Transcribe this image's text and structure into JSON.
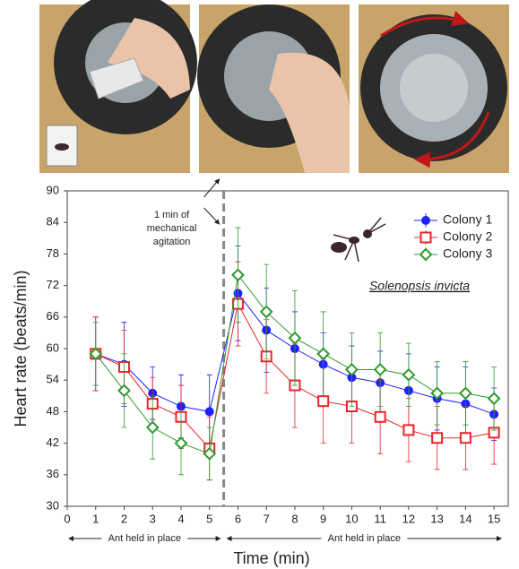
{
  "chart_data": {
    "type": "line",
    "xlabel": "Time (min)",
    "ylabel": "Heart rate (beats/min)",
    "x": [
      1,
      2,
      3,
      4,
      5,
      6,
      7,
      8,
      9,
      10,
      11,
      12,
      13,
      14,
      15
    ],
    "series": [
      {
        "name": "Colony 1",
        "color": "#1f1fff",
        "marker": "circle",
        "values": [
          59,
          57,
          51.5,
          49,
          48,
          70.5,
          63.5,
          60,
          57,
          54.5,
          53.5,
          52,
          50.5,
          49.5,
          47.5
        ],
        "errors": [
          7,
          8,
          5,
          6,
          7,
          9,
          8,
          7,
          6,
          6,
          6,
          7,
          6,
          7,
          5
        ]
      },
      {
        "name": "Colony 2",
        "color": "#e8262a",
        "marker": "square",
        "values": [
          59,
          56.5,
          49.5,
          47,
          41,
          68.5,
          58.5,
          53,
          50,
          49,
          47,
          44.5,
          43,
          43,
          44
        ],
        "errors": [
          7,
          7,
          5,
          6,
          6,
          8,
          7,
          8,
          8,
          7,
          7,
          6,
          6,
          6,
          6
        ]
      },
      {
        "name": "Colony 3",
        "color": "#2e9a2e",
        "marker": "diamond",
        "values": [
          59,
          52,
          45,
          42,
          40,
          74,
          67,
          62,
          59,
          56,
          56,
          55,
          51.5,
          51.5,
          50.5
        ],
        "errors": [
          6,
          7,
          6,
          6,
          5,
          9,
          9,
          9,
          8,
          7,
          7,
          6,
          6,
          6,
          6
        ]
      }
    ],
    "xlim": [
      0,
      15.5
    ],
    "ylim": [
      30,
      90
    ],
    "xticks": [
      0,
      1,
      2,
      3,
      4,
      5,
      6,
      7,
      8,
      9,
      10,
      11,
      12,
      13,
      14,
      15
    ],
    "yticks": [
      30,
      36,
      42,
      48,
      54,
      60,
      66,
      72,
      78,
      84,
      90
    ],
    "legend": "upper right",
    "agitation_x": 5.5,
    "agitation_label": [
      "1 min of",
      "mechanical",
      "agitation"
    ],
    "species": "Solenopsis invicta",
    "held_before": "Ant held in place",
    "held_after": "Ant held in place"
  }
}
